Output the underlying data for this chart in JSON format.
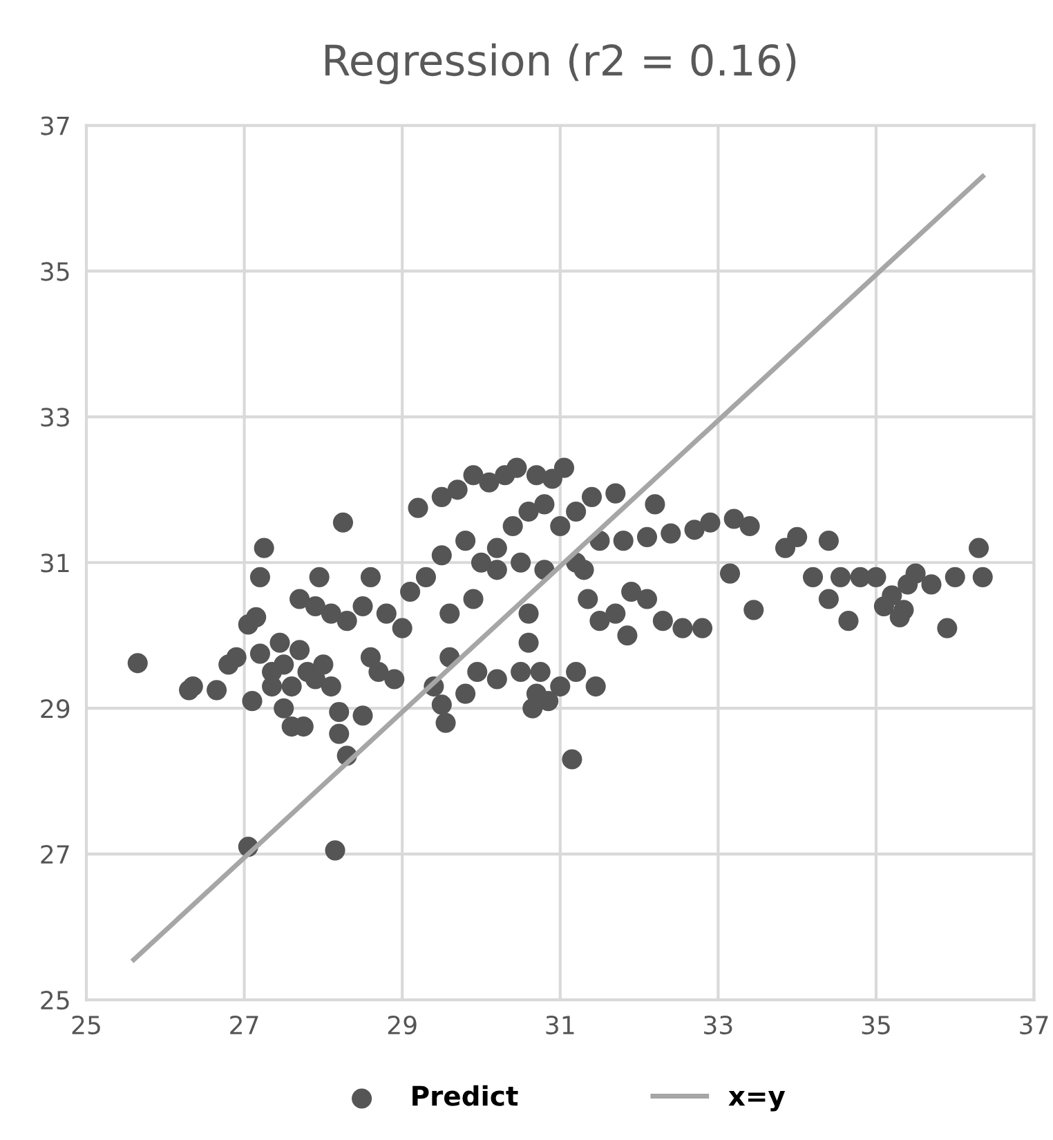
{
  "chart_data": {
    "type": "scatter",
    "title": "Regression (r2 = 0.16)",
    "xlim": [
      25,
      37
    ],
    "xticks": [
      25,
      27,
      29,
      31,
      33,
      35,
      37
    ],
    "ylim": [
      25,
      37
    ],
    "yticks": [
      25,
      27,
      29,
      31,
      33,
      35,
      37
    ],
    "grid": true,
    "legend": "bottom",
    "marker": "circle",
    "series": [
      {
        "name": "Predict",
        "color": "#555555",
        "x": [
          25.65,
          26.35,
          26.3,
          26.65,
          26.8,
          26.9,
          27.05,
          27.15,
          27.2,
          27.25,
          27.1,
          27.2,
          27.35,
          27.5,
          27.6,
          27.7,
          27.8,
          27.9,
          27.6,
          27.75,
          27.5,
          28.0,
          28.1,
          28.2,
          28.3,
          28.2,
          28.5,
          28.6,
          28.7,
          27.7,
          27.9,
          28.1,
          28.3,
          28.5,
          28.6,
          28.25,
          27.95,
          28.8,
          29.0,
          28.9,
          27.05,
          28.15,
          27.35,
          27.45,
          29.2,
          29.5,
          29.7,
          29.9,
          30.1,
          30.3,
          30.45,
          30.7,
          30.9,
          31.05,
          29.1,
          29.3,
          29.5,
          29.8,
          30.0,
          30.2,
          30.4,
          30.6,
          30.8,
          31.0,
          31.2,
          31.4,
          31.7,
          30.2,
          30.5,
          30.8,
          29.6,
          29.9,
          29.6,
          29.95,
          30.2,
          30.5,
          30.75,
          31.0,
          31.2,
          31.45,
          29.4,
          29.5,
          29.55,
          29.8,
          30.65,
          30.7,
          30.6,
          30.6,
          31.15,
          30.85,
          31.35,
          31.5,
          31.7,
          31.9,
          32.1,
          32.3,
          32.55,
          32.8,
          31.2,
          31.5,
          31.8,
          32.1,
          32.4,
          32.7,
          32.9,
          31.85,
          31.3,
          32.2,
          33.2,
          33.4,
          33.15,
          33.45,
          33.85,
          34.0,
          34.4,
          34.2,
          34.4,
          34.55,
          34.65,
          34.8,
          35.0,
          35.1,
          35.2,
          35.35,
          35.4,
          35.5,
          35.7,
          35.9,
          36.0,
          36.3,
          36.35,
          35.3
        ],
        "values": [
          29.62,
          29.3,
          29.25,
          29.25,
          29.6,
          29.7,
          30.15,
          30.25,
          30.8,
          31.2,
          29.1,
          29.75,
          29.5,
          29.6,
          29.3,
          29.8,
          29.5,
          29.4,
          28.75,
          28.75,
          29.0,
          29.6,
          29.3,
          28.95,
          28.35,
          28.65,
          28.9,
          29.7,
          29.5,
          30.5,
          30.4,
          30.3,
          30.2,
          30.4,
          30.8,
          31.55,
          30.8,
          30.3,
          30.1,
          29.4,
          27.1,
          27.05,
          29.3,
          29.9,
          31.75,
          31.9,
          32.0,
          32.2,
          32.1,
          32.2,
          32.3,
          32.2,
          32.15,
          32.3,
          30.6,
          30.8,
          31.1,
          31.3,
          31.0,
          31.2,
          31.5,
          31.7,
          31.8,
          31.5,
          31.7,
          31.9,
          31.95,
          30.9,
          31.0,
          30.9,
          30.3,
          30.5,
          29.7,
          29.5,
          29.4,
          29.5,
          29.5,
          29.3,
          29.5,
          29.3,
          29.3,
          29.05,
          28.8,
          29.2,
          29.0,
          29.2,
          29.9,
          30.3,
          28.3,
          29.1,
          30.5,
          30.2,
          30.3,
          30.6,
          30.5,
          30.2,
          30.1,
          30.1,
          31.0,
          31.3,
          31.3,
          31.35,
          31.4,
          31.45,
          31.55,
          30.0,
          30.9,
          31.8,
          31.6,
          31.5,
          30.85,
          30.35,
          31.2,
          31.35,
          31.3,
          30.8,
          30.5,
          30.8,
          30.2,
          30.8,
          30.8,
          30.4,
          30.55,
          30.35,
          30.7,
          30.85,
          30.7,
          30.1,
          30.8,
          31.2,
          30.8,
          30.25
        ]
      },
      {
        "name": "x=y",
        "color": "#a6a6a6",
        "type": "line",
        "marker": "none",
        "x": [
          25.6,
          36.35
        ],
        "values": [
          25.55,
          36.3
        ]
      }
    ]
  }
}
